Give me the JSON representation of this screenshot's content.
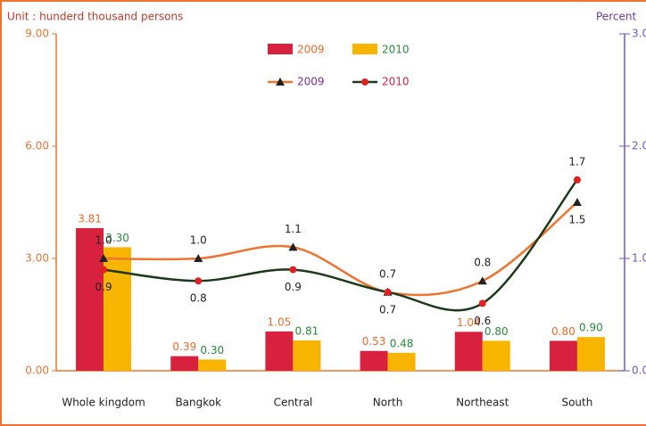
{
  "chart_data": {
    "type": "bar_line",
    "y_label": "Unit : hunderd thousand persons",
    "y2_label": "Percent",
    "categories": [
      "Whole kingdom",
      "Bangkok",
      "Central",
      "North",
      "Northeast",
      "South"
    ],
    "series": [
      {
        "name": "2009",
        "type": "bar",
        "color": "#d8213f",
        "values": [
          3.81,
          0.39,
          1.05,
          0.53,
          1.04,
          0.8
        ],
        "value_labels": [
          "3.81",
          "0.39",
          "1.05",
          "0.53",
          "1.04",
          "0.80"
        ]
      },
      {
        "name": "2010",
        "type": "bar",
        "color": "#f7b500",
        "values": [
          3.3,
          0.3,
          0.81,
          0.48,
          0.8,
          0.9
        ],
        "value_labels": [
          "3.30",
          "0.30",
          "0.81",
          "0.48",
          "0.80",
          "0.90"
        ]
      },
      {
        "name": "2009",
        "type": "line",
        "axis": "y2",
        "color": "#ee7430",
        "marker": "triangle",
        "values": [
          1.0,
          1.0,
          1.1,
          0.7,
          0.8,
          1.5
        ],
        "value_labels": [
          "1.0",
          "1.0",
          "1.1",
          "0.7",
          "0.8",
          "1.5"
        ]
      },
      {
        "name": "2010",
        "type": "line",
        "axis": "y2",
        "color": "#1a3a1a",
        "marker": "circle",
        "values": [
          0.9,
          0.8,
          0.9,
          0.7,
          0.6,
          1.7
        ],
        "value_labels": [
          "0.9",
          "0.8",
          "0.9",
          "0.7",
          "0.6",
          "1.7"
        ]
      }
    ],
    "ylim": [
      0,
      9
    ],
    "yticks": [
      {
        "value": 0,
        "label": "0.00"
      },
      {
        "value": 3,
        "label": "3.00"
      },
      {
        "value": 6,
        "label": "6.00"
      },
      {
        "value": 9,
        "label": "9.00"
      }
    ],
    "y2lim": [
      0,
      3
    ],
    "y2ticks": [
      {
        "value": 0,
        "label": "0.0"
      },
      {
        "value": 1,
        "label": "1.0"
      },
      {
        "value": 2,
        "label": "2.0"
      },
      {
        "value": 3,
        "label": "3.0"
      }
    ]
  }
}
